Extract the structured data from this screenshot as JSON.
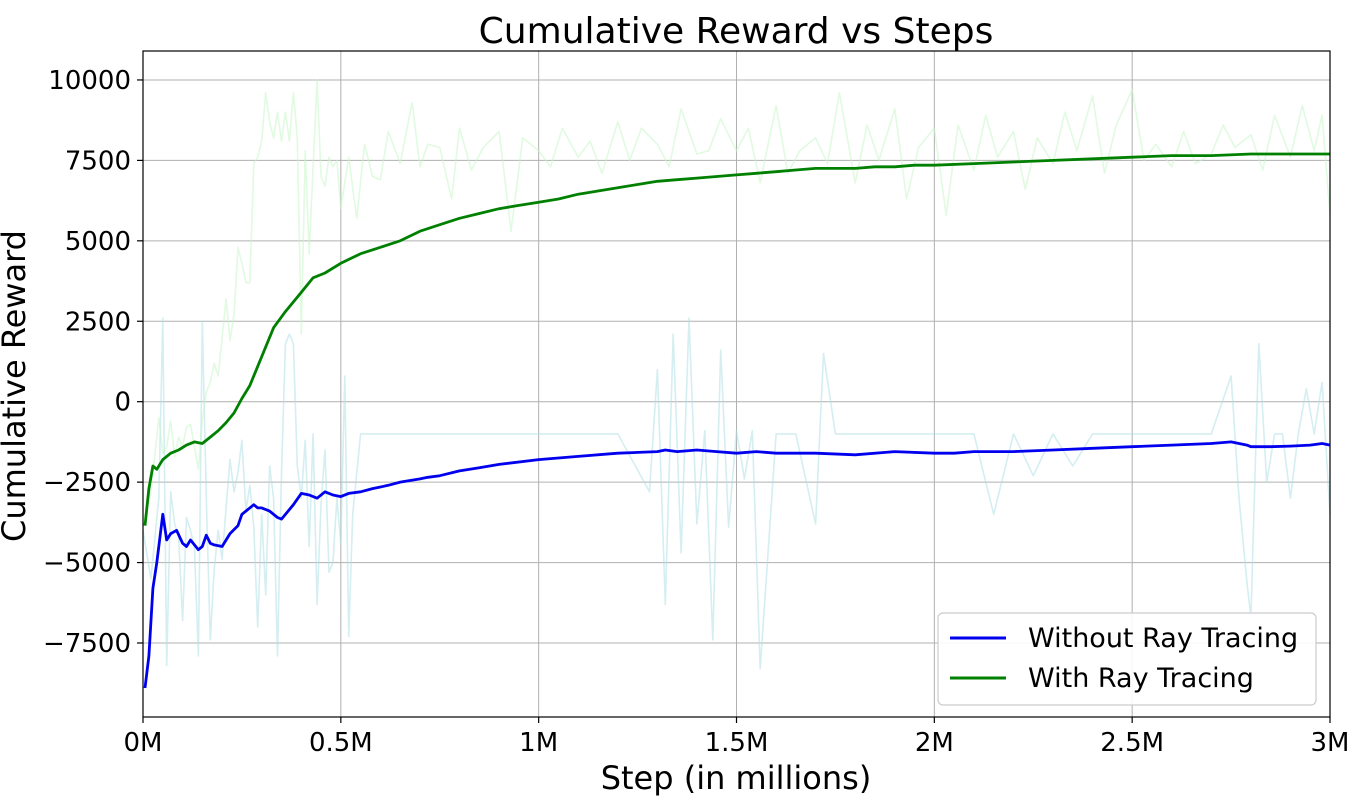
{
  "chart_data": {
    "type": "line",
    "title": "Cumulative Reward vs Steps",
    "xlabel": "Step (in millions)",
    "ylabel": "Cumulative Reward",
    "xlim": [
      0,
      3.0
    ],
    "ylim": [
      -9800,
      10900
    ],
    "x_ticks": [
      0,
      0.5,
      1.0,
      1.5,
      2.0,
      2.5,
      3.0
    ],
    "x_tick_labels": [
      "0M",
      "0.5M",
      "1M",
      "1.5M",
      "2M",
      "2.5M",
      "3M"
    ],
    "y_ticks": [
      -7500,
      -5000,
      -2500,
      0,
      2500,
      5000,
      7500,
      10000
    ],
    "y_tick_labels": [
      "−7500",
      "−5000",
      "−2500",
      "0",
      "2500",
      "5000",
      "7500",
      "10000"
    ],
    "grid": true,
    "legend_position": "lower-right",
    "series": [
      {
        "name": "Without Ray Tracing",
        "color": "#0000ee",
        "x": [
          0.005,
          0.015,
          0.025,
          0.035,
          0.05,
          0.06,
          0.07,
          0.085,
          0.1,
          0.11,
          0.12,
          0.14,
          0.15,
          0.16,
          0.17,
          0.18,
          0.2,
          0.22,
          0.24,
          0.25,
          0.26,
          0.27,
          0.28,
          0.29,
          0.3,
          0.32,
          0.34,
          0.35,
          0.38,
          0.4,
          0.42,
          0.44,
          0.46,
          0.48,
          0.5,
          0.52,
          0.55,
          0.58,
          0.6,
          0.62,
          0.65,
          0.7,
          0.72,
          0.75,
          0.8,
          0.85,
          0.9,
          1.0,
          1.1,
          1.2,
          1.3,
          1.32,
          1.35,
          1.4,
          1.45,
          1.5,
          1.55,
          1.6,
          1.7,
          1.8,
          1.9,
          2.0,
          2.05,
          2.1,
          2.2,
          2.3,
          2.4,
          2.5,
          2.6,
          2.7,
          2.75,
          2.77,
          2.79,
          2.8,
          2.85,
          2.9,
          2.95,
          2.98,
          3.0
        ],
        "y": [
          -8900,
          -7900,
          -5800,
          -5000,
          -3500,
          -4300,
          -4100,
          -4000,
          -4400,
          -4500,
          -4300,
          -4600,
          -4500,
          -4150,
          -4400,
          -4450,
          -4500,
          -4100,
          -3850,
          -3500,
          -3400,
          -3300,
          -3200,
          -3300,
          -3300,
          -3400,
          -3600,
          -3650,
          -3200,
          -2850,
          -2900,
          -3000,
          -2800,
          -2900,
          -2950,
          -2850,
          -2800,
          -2700,
          -2650,
          -2600,
          -2500,
          -2400,
          -2350,
          -2300,
          -2150,
          -2050,
          -1950,
          -1800,
          -1700,
          -1600,
          -1550,
          -1500,
          -1550,
          -1500,
          -1550,
          -1600,
          -1550,
          -1600,
          -1600,
          -1650,
          -1550,
          -1600,
          -1600,
          -1550,
          -1550,
          -1500,
          -1450,
          -1400,
          -1350,
          -1300,
          -1250,
          -1300,
          -1350,
          -1400,
          -1400,
          -1380,
          -1350,
          -1300,
          -1350
        ]
      },
      {
        "name": "With Ray Tracing",
        "color": "#008000",
        "x": [
          0.005,
          0.015,
          0.025,
          0.035,
          0.05,
          0.07,
          0.09,
          0.11,
          0.13,
          0.15,
          0.17,
          0.19,
          0.21,
          0.23,
          0.25,
          0.27,
          0.3,
          0.33,
          0.36,
          0.4,
          0.43,
          0.46,
          0.5,
          0.55,
          0.6,
          0.65,
          0.7,
          0.75,
          0.8,
          0.85,
          0.9,
          0.95,
          1.0,
          1.05,
          1.1,
          1.15,
          1.2,
          1.25,
          1.3,
          1.35,
          1.4,
          1.45,
          1.5,
          1.55,
          1.6,
          1.65,
          1.7,
          1.75,
          1.8,
          1.85,
          1.9,
          1.95,
          2.0,
          2.1,
          2.2,
          2.3,
          2.4,
          2.5,
          2.6,
          2.7,
          2.8,
          2.9,
          3.0
        ],
        "y": [
          -3850,
          -2700,
          -2000,
          -2100,
          -1800,
          -1600,
          -1500,
          -1350,
          -1250,
          -1300,
          -1100,
          -900,
          -650,
          -350,
          100,
          500,
          1400,
          2300,
          2800,
          3400,
          3850,
          4000,
          4300,
          4600,
          4800,
          5000,
          5300,
          5500,
          5700,
          5850,
          6000,
          6100,
          6200,
          6300,
          6450,
          6550,
          6650,
          6750,
          6850,
          6900,
          6950,
          7000,
          7050,
          7100,
          7150,
          7200,
          7250,
          7250,
          7250,
          7300,
          7300,
          7350,
          7350,
          7400,
          7450,
          7500,
          7550,
          7600,
          7650,
          7650,
          7700,
          7700,
          7700
        ]
      }
    ],
    "raw_series": [
      {
        "name": "Without Ray Tracing (raw)",
        "color": "#b0e0e6",
        "x": [
          0.0,
          0.02,
          0.04,
          0.05,
          0.06,
          0.07,
          0.08,
          0.09,
          0.1,
          0.11,
          0.12,
          0.13,
          0.14,
          0.15,
          0.16,
          0.17,
          0.18,
          0.19,
          0.2,
          0.21,
          0.22,
          0.23,
          0.24,
          0.25,
          0.26,
          0.27,
          0.28,
          0.29,
          0.3,
          0.31,
          0.32,
          0.33,
          0.34,
          0.35,
          0.36,
          0.37,
          0.38,
          0.39,
          0.4,
          0.41,
          0.42,
          0.43,
          0.44,
          0.45,
          0.46,
          0.47,
          0.48,
          0.49,
          0.5,
          0.51,
          0.52,
          0.53,
          0.55,
          0.58,
          0.6,
          0.62,
          0.65,
          0.7,
          0.75,
          0.8,
          0.85,
          0.9,
          1.0,
          1.1,
          1.2,
          1.28,
          1.3,
          1.32,
          1.34,
          1.36,
          1.38,
          1.4,
          1.42,
          1.44,
          1.46,
          1.48,
          1.5,
          1.52,
          1.54,
          1.56,
          1.6,
          1.65,
          1.7,
          1.72,
          1.75,
          1.8,
          1.85,
          1.9,
          1.95,
          2.0,
          2.05,
          2.1,
          2.15,
          2.2,
          2.25,
          2.3,
          2.35,
          2.4,
          2.45,
          2.5,
          2.55,
          2.6,
          2.65,
          2.7,
          2.75,
          2.77,
          2.79,
          2.8,
          2.82,
          2.84,
          2.86,
          2.88,
          2.9,
          2.92,
          2.94,
          2.96,
          2.98,
          3.0
        ],
        "y": [
          -4000,
          -5500,
          -3000,
          2600,
          -8200,
          -2800,
          -3800,
          -4200,
          -6800,
          -3600,
          -4000,
          -4500,
          -7900,
          2500,
          -3000,
          -7400,
          -5200,
          -4000,
          -4900,
          -3300,
          -1800,
          -2800,
          -2200,
          -1200,
          -3400,
          -2600,
          -3900,
          -7000,
          -3500,
          -6000,
          -2000,
          -3000,
          -7900,
          -2200,
          1800,
          2100,
          1800,
          -2000,
          -3000,
          -1200,
          -4500,
          -1000,
          -6300,
          -3200,
          -1500,
          -5300,
          -5000,
          -3000,
          -4400,
          800,
          -7300,
          -3500,
          -1000,
          -1000,
          -1000,
          -1000,
          -1000,
          -1000,
          -1000,
          -1000,
          -1000,
          -1000,
          -1000,
          -1000,
          -1000,
          -2800,
          1000,
          -6300,
          2100,
          -4700,
          2600,
          -3800,
          -900,
          -7400,
          1600,
          -3900,
          -900,
          -2400,
          -900,
          -8300,
          -1000,
          -1000,
          -3800,
          1500,
          -1000,
          -1000,
          -1000,
          -1000,
          -1000,
          -1000,
          -1000,
          -1000,
          -3500,
          -1000,
          -2300,
          -1000,
          -2000,
          -1000,
          -1000,
          -1000,
          -1000,
          -1000,
          -1000,
          -1000,
          800,
          -3000,
          -5600,
          -6700,
          1800,
          -2500,
          -1000,
          -1000,
          -3000,
          -1000,
          400,
          -1000,
          600,
          -3500
        ]
      },
      {
        "name": "With Ray Tracing (raw)",
        "color": "#c8f5c8",
        "x": [
          0.0,
          0.02,
          0.04,
          0.05,
          0.06,
          0.07,
          0.08,
          0.09,
          0.1,
          0.11,
          0.12,
          0.13,
          0.14,
          0.15,
          0.16,
          0.17,
          0.18,
          0.19,
          0.2,
          0.21,
          0.22,
          0.23,
          0.24,
          0.25,
          0.26,
          0.27,
          0.28,
          0.29,
          0.3,
          0.31,
          0.32,
          0.33,
          0.34,
          0.35,
          0.36,
          0.37,
          0.38,
          0.39,
          0.4,
          0.41,
          0.42,
          0.43,
          0.44,
          0.45,
          0.46,
          0.47,
          0.48,
          0.49,
          0.5,
          0.52,
          0.54,
          0.56,
          0.58,
          0.6,
          0.62,
          0.65,
          0.68,
          0.7,
          0.72,
          0.75,
          0.78,
          0.8,
          0.83,
          0.86,
          0.9,
          0.93,
          0.96,
          1.0,
          1.03,
          1.06,
          1.1,
          1.13,
          1.16,
          1.2,
          1.23,
          1.26,
          1.3,
          1.33,
          1.36,
          1.4,
          1.43,
          1.46,
          1.5,
          1.53,
          1.56,
          1.6,
          1.63,
          1.66,
          1.7,
          1.73,
          1.76,
          1.8,
          1.83,
          1.86,
          1.9,
          1.93,
          1.96,
          2.0,
          2.03,
          2.06,
          2.1,
          2.13,
          2.16,
          2.2,
          2.23,
          2.26,
          2.3,
          2.33,
          2.36,
          2.4,
          2.43,
          2.46,
          2.5,
          2.53,
          2.56,
          2.6,
          2.63,
          2.66,
          2.7,
          2.73,
          2.76,
          2.8,
          2.83,
          2.86,
          2.9,
          2.93,
          2.96,
          2.98,
          3.0
        ],
        "y": [
          -3800,
          -2800,
          -500,
          -1600,
          -1400,
          -600,
          -1700,
          -1100,
          -1400,
          -800,
          -700,
          -1400,
          -2100,
          -600,
          300,
          600,
          1200,
          800,
          2000,
          3200,
          1900,
          2700,
          4800,
          4300,
          3700,
          3700,
          7400,
          7600,
          8100,
          9600,
          8700,
          8200,
          9000,
          8100,
          9000,
          8100,
          9600,
          8200,
          2100,
          7800,
          4600,
          7300,
          10000,
          7000,
          6700,
          7600,
          7300,
          7500,
          6000,
          7600,
          5700,
          8000,
          7000,
          6900,
          8400,
          7400,
          9300,
          7300,
          8000,
          7900,
          6300,
          8500,
          7200,
          7900,
          8400,
          5300,
          8200,
          7800,
          7300,
          8500,
          7600,
          8100,
          7100,
          8700,
          7500,
          8500,
          8000,
          7300,
          9100,
          7700,
          7800,
          8800,
          7800,
          8500,
          6800,
          9200,
          7100,
          7800,
          8200,
          7400,
          9600,
          6800,
          8600,
          7500,
          9100,
          6300,
          7900,
          8500,
          5800,
          8600,
          7200,
          8900,
          7600,
          8400,
          6600,
          8200,
          7400,
          9000,
          7800,
          9500,
          7100,
          8600,
          9700,
          7500,
          8000,
          7300,
          8400,
          7400,
          7700,
          8600,
          7900,
          8300,
          7200,
          8900,
          7600,
          9200,
          7800,
          8900,
          5800
        ]
      }
    ]
  }
}
